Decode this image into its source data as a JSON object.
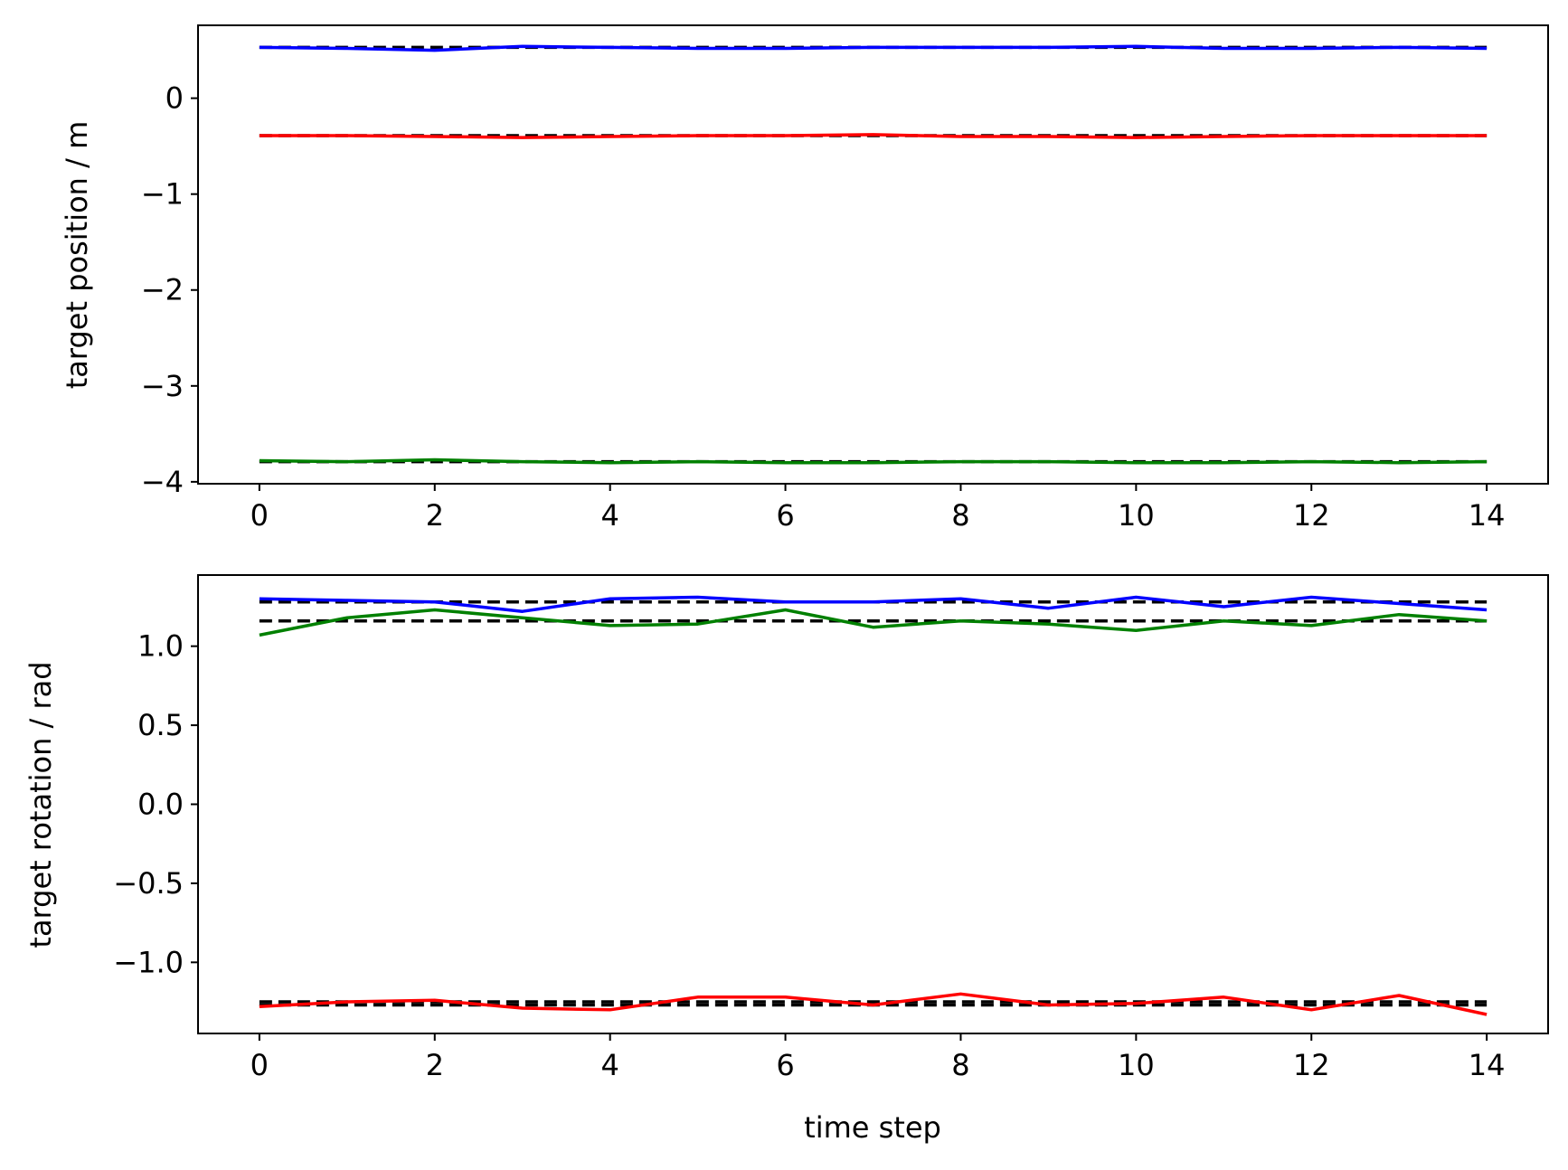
{
  "chart_data": [
    {
      "type": "line",
      "ylabel": "target position / m",
      "xlabel": "",
      "xlim": [
        -0.7,
        14.7
      ],
      "ylim": [
        -4.02,
        0.76
      ],
      "xticks": [
        0,
        2,
        4,
        6,
        8,
        10,
        12,
        14
      ],
      "xtick_labels": [
        "0",
        "2",
        "4",
        "6",
        "8",
        "10",
        "12",
        "14"
      ],
      "yticks": [
        -4,
        -3,
        -2,
        -1,
        0
      ],
      "ytick_labels": [
        "−4",
        "−3",
        "−2",
        "−1",
        "0"
      ],
      "x": [
        0,
        1,
        2,
        3,
        4,
        5,
        6,
        7,
        8,
        9,
        10,
        11,
        12,
        13,
        14
      ],
      "series": [
        {
          "color": "#0000ff",
          "style": "solid",
          "values": [
            0.53,
            0.52,
            0.5,
            0.54,
            0.53,
            0.52,
            0.52,
            0.53,
            0.53,
            0.53,
            0.54,
            0.52,
            0.52,
            0.53,
            0.52
          ]
        },
        {
          "color": "#ff0000",
          "style": "solid",
          "values": [
            -0.39,
            -0.39,
            -0.4,
            -0.41,
            -0.4,
            -0.39,
            -0.39,
            -0.38,
            -0.4,
            -0.4,
            -0.41,
            -0.4,
            -0.39,
            -0.39,
            -0.39
          ]
        },
        {
          "color": "#008000",
          "style": "solid",
          "values": [
            -3.78,
            -3.79,
            -3.77,
            -3.79,
            -3.8,
            -3.79,
            -3.8,
            -3.8,
            -3.79,
            -3.79,
            -3.8,
            -3.8,
            -3.79,
            -3.8,
            -3.79
          ]
        }
      ],
      "reference_lines": [
        {
          "color": "#000000",
          "style": "dashed",
          "y": 0.53
        },
        {
          "color": "#000000",
          "style": "dashed",
          "y": -0.39
        },
        {
          "color": "#000000",
          "style": "dashed",
          "y": -3.79
        }
      ],
      "grid": false,
      "legend": "none"
    },
    {
      "type": "line",
      "ylabel": "target rotation / rad",
      "xlabel": "time step",
      "xlim": [
        -0.7,
        14.7
      ],
      "ylim": [
        -1.45,
        1.45
      ],
      "xticks": [
        0,
        2,
        4,
        6,
        8,
        10,
        12,
        14
      ],
      "xtick_labels": [
        "0",
        "2",
        "4",
        "6",
        "8",
        "10",
        "12",
        "14"
      ],
      "yticks": [
        -1.0,
        -0.5,
        0.0,
        0.5,
        1.0
      ],
      "ytick_labels": [
        "−1.0",
        "−0.5",
        "0.0",
        "0.5",
        "1.0"
      ],
      "x": [
        0,
        1,
        2,
        3,
        4,
        5,
        6,
        7,
        8,
        9,
        10,
        11,
        12,
        13,
        14
      ],
      "series": [
        {
          "color": "#0000ff",
          "style": "solid",
          "values": [
            1.3,
            1.29,
            1.28,
            1.22,
            1.3,
            1.31,
            1.28,
            1.28,
            1.3,
            1.24,
            1.31,
            1.25,
            1.31,
            1.27,
            1.23
          ]
        },
        {
          "color": "#008000",
          "style": "solid",
          "values": [
            1.07,
            1.18,
            1.23,
            1.18,
            1.13,
            1.14,
            1.23,
            1.12,
            1.16,
            1.14,
            1.1,
            1.16,
            1.13,
            1.2,
            1.16
          ]
        },
        {
          "color": "#ff0000",
          "style": "solid",
          "values": [
            -1.28,
            -1.25,
            -1.24,
            -1.29,
            -1.3,
            -1.22,
            -1.22,
            -1.27,
            -1.2,
            -1.27,
            -1.26,
            -1.22,
            -1.3,
            -1.21,
            -1.33
          ]
        }
      ],
      "reference_lines": [
        {
          "color": "#000000",
          "style": "dashed",
          "y": 1.28
        },
        {
          "color": "#000000",
          "style": "dashed",
          "y": 1.16
        },
        {
          "color": "#000000",
          "style": "dashed",
          "y": -1.25
        },
        {
          "color": "#000000",
          "style": "dashed",
          "y": -1.27
        }
      ],
      "grid": false,
      "legend": "none"
    }
  ]
}
